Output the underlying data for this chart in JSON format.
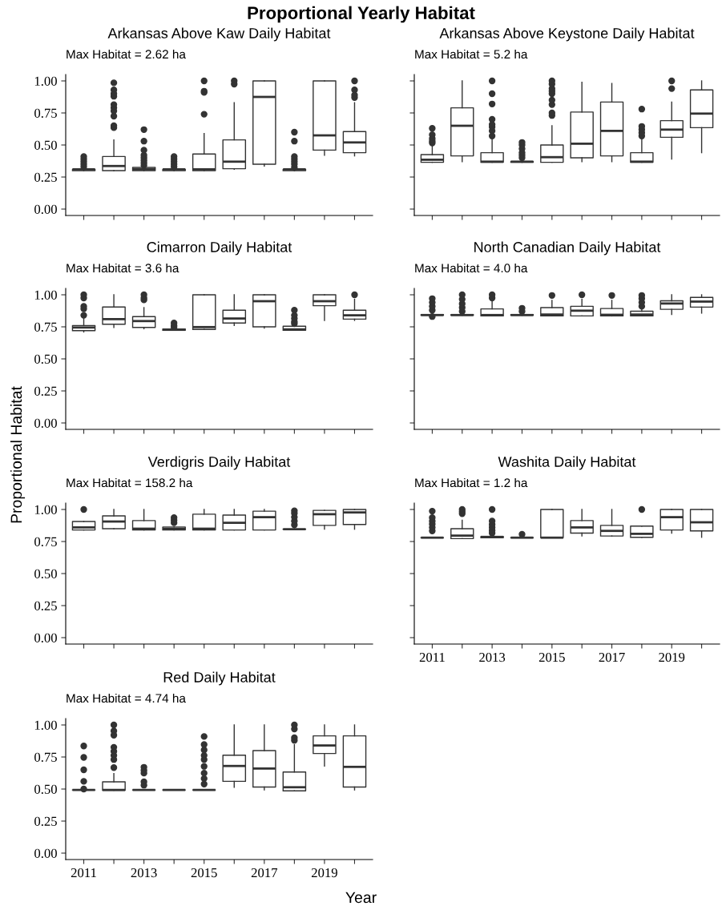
{
  "chart_data": [
    {
      "type": "other",
      "title": "Proportional Yearly Habitat",
      "xlabel": "Year",
      "ylabel": "Proportional Habitat"
    },
    {
      "type": "box",
      "title": "Arkansas Above Kaw Daily Habitat",
      "subtitle": "Max Habitat = 2.62 ha",
      "categories": [
        "2011",
        null,
        "2013",
        null,
        "2015",
        null,
        "2017",
        null,
        "2019",
        null
      ],
      "ylim": [
        -0.05,
        1.05
      ],
      "yticks": [
        {
          "value": 0,
          "label": "0.00"
        },
        {
          "value": 0.25,
          "label": "0.25"
        },
        {
          "value": 0.5,
          "label": "0.50"
        },
        {
          "value": 0.75,
          "label": "0.75"
        },
        {
          "value": 1,
          "label": "1.00"
        }
      ],
      "tick_labels": "y",
      "boxes": [
        {
          "low": 0.3,
          "q1": 0.3,
          "median": 0.31,
          "q3": 0.31,
          "high": 0.31,
          "outliers": [
            0.33,
            0.35,
            0.37,
            0.39,
            0.41
          ]
        },
        {
          "low": 0.3,
          "q1": 0.3,
          "median": 0.336,
          "q3": 0.41,
          "high": 0.54,
          "outliers": [
            0.635,
            0.65,
            0.725,
            0.765,
            0.79,
            0.815,
            0.88,
            0.9,
            0.93,
            0.985
          ]
        },
        {
          "low": 0.3,
          "q1": 0.3,
          "median": 0.31,
          "q3": 0.325,
          "high": 0.33,
          "outliers": [
            0.34,
            0.36,
            0.38,
            0.4,
            0.42,
            0.46,
            0.53,
            0.62
          ]
        },
        {
          "low": 0.3,
          "q1": 0.3,
          "median": 0.31,
          "q3": 0.31,
          "high": 0.31,
          "outliers": [
            0.33,
            0.35,
            0.37,
            0.39,
            0.41
          ]
        },
        {
          "low": 0.3,
          "q1": 0.3,
          "median": 0.31,
          "q3": 0.43,
          "high": 0.59,
          "outliers": [
            0.74,
            0.91,
            0.92,
            1.0
          ]
        },
        {
          "low": 0.31,
          "q1": 0.315,
          "median": 0.37,
          "q3": 0.54,
          "high": 0.83,
          "outliers": [
            0.975,
            1.0
          ]
        },
        {
          "low": 0.335,
          "q1": 0.35,
          "median": 0.875,
          "q3": 1.0,
          "high": 1.0
        },
        {
          "low": 0.3,
          "q1": 0.3,
          "median": 0.31,
          "q3": 0.31,
          "high": 0.31,
          "outliers": [
            0.325,
            0.35,
            0.37,
            0.39,
            0.41,
            0.53,
            0.6
          ]
        },
        {
          "low": 0.42,
          "q1": 0.46,
          "median": 0.575,
          "q3": 1.0,
          "high": 1.0
        },
        {
          "low": 0.415,
          "q1": 0.44,
          "median": 0.52,
          "q3": 0.605,
          "high": 0.83,
          "outliers": [
            0.87,
            0.89,
            0.93,
            1.0
          ]
        }
      ]
    },
    {
      "type": "box",
      "title": "Arkansas Above Keystone Daily Habitat",
      "subtitle": "Max Habitat = 5.2 ha",
      "categories": [
        "2011",
        null,
        "2013",
        null,
        "2015",
        null,
        "2017",
        null,
        "2019",
        null
      ],
      "ylim": [
        -0.05,
        1.05
      ],
      "yticks": [
        {
          "value": 0,
          "label": null
        },
        {
          "value": 0.25,
          "label": null
        },
        {
          "value": 0.5,
          "label": null
        },
        {
          "value": 0.75,
          "label": null
        },
        {
          "value": 1,
          "label": null
        }
      ],
      "tick_labels": false,
      "boxes": [
        {
          "low": 0.365,
          "q1": 0.365,
          "median": 0.385,
          "q3": 0.425,
          "high": 0.5,
          "outliers": [
            0.515,
            0.53,
            0.55,
            0.58,
            0.63
          ]
        },
        {
          "low": 0.37,
          "q1": 0.415,
          "median": 0.65,
          "q3": 0.79,
          "high": 1.0
        },
        {
          "low": 0.365,
          "q1": 0.365,
          "median": 0.37,
          "q3": 0.44,
          "high": 0.56,
          "outliers": [
            0.57,
            0.61,
            0.64,
            0.66,
            0.7,
            0.82,
            0.9,
            1.0
          ]
        },
        {
          "low": 0.365,
          "q1": 0.365,
          "median": 0.37,
          "q3": 0.37,
          "high": 0.37,
          "outliers": [
            0.4,
            0.42,
            0.44,
            0.47,
            0.5,
            0.52
          ]
        },
        {
          "low": 0.365,
          "q1": 0.365,
          "median": 0.405,
          "q3": 0.5,
          "high": 0.65,
          "outliers": [
            0.73,
            0.75,
            0.815,
            0.85,
            0.9,
            0.92,
            0.94,
            0.975,
            1.0
          ]
        },
        {
          "low": 0.37,
          "q1": 0.4,
          "median": 0.51,
          "q3": 0.757,
          "high": 0.99
        },
        {
          "low": 0.37,
          "q1": 0.415,
          "median": 0.61,
          "q3": 0.835,
          "high": 0.98
        },
        {
          "low": 0.365,
          "q1": 0.365,
          "median": 0.37,
          "q3": 0.44,
          "high": 0.56,
          "outliers": [
            0.57,
            0.595,
            0.62,
            0.645,
            0.78
          ]
        },
        {
          "low": 0.39,
          "q1": 0.56,
          "median": 0.62,
          "q3": 0.69,
          "high": 0.835,
          "outliers": [
            0.94,
            1.0
          ]
        },
        {
          "low": 0.44,
          "q1": 0.635,
          "median": 0.745,
          "q3": 0.93,
          "high": 1.0
        }
      ]
    },
    {
      "type": "box",
      "title": "Cimarron Daily Habitat",
      "subtitle": "Max Habitat = 3.6 ha",
      "categories": [
        "2011",
        null,
        "2013",
        null,
        "2015",
        null,
        "2017",
        null,
        "2019",
        null
      ],
      "ylim": [
        -0.05,
        1.05
      ],
      "yticks": [
        {
          "value": 0,
          "label": "0.00"
        },
        {
          "value": 0.25,
          "label": "0.25"
        },
        {
          "value": 0.5,
          "label": "0.50"
        },
        {
          "value": 0.75,
          "label": "0.75"
        },
        {
          "value": 1,
          "label": "1.00"
        }
      ],
      "tick_labels": "y",
      "boxes": [
        {
          "low": 0.71,
          "q1": 0.72,
          "median": 0.745,
          "q3": 0.76,
          "high": 0.815,
          "outliers": [
            0.84,
            0.89,
            0.91,
            0.975,
            1.0
          ]
        },
        {
          "low": 0.745,
          "q1": 0.77,
          "median": 0.81,
          "q3": 0.905,
          "high": 1.0
        },
        {
          "low": 0.735,
          "q1": 0.745,
          "median": 0.795,
          "q3": 0.83,
          "high": 0.9,
          "outliers": [
            0.96,
            0.975,
            1.0
          ]
        },
        {
          "low": 0.723,
          "q1": 0.723,
          "median": 0.727,
          "q3": 0.733,
          "high": 0.733,
          "outliers": [
            0.745,
            0.76,
            0.78
          ]
        },
        {
          "low": 0.73,
          "q1": 0.73,
          "median": 0.748,
          "q3": 1.0,
          "high": 1.0
        },
        {
          "low": 0.76,
          "q1": 0.78,
          "median": 0.815,
          "q3": 0.88,
          "high": 1.0
        },
        {
          "low": 0.74,
          "q1": 0.75,
          "median": 0.95,
          "q3": 1.0,
          "high": 1.0
        },
        {
          "low": 0.723,
          "q1": 0.723,
          "median": 0.73,
          "q3": 0.755,
          "high": 0.755,
          "outliers": [
            0.775,
            0.79,
            0.815,
            0.84,
            0.88
          ]
        },
        {
          "low": 0.8,
          "q1": 0.915,
          "median": 0.95,
          "q3": 1.0,
          "high": 1.0
        },
        {
          "low": 0.8,
          "q1": 0.81,
          "median": 0.84,
          "q3": 0.88,
          "high": 0.965,
          "outliers": [
            1.0
          ]
        }
      ]
    },
    {
      "type": "box",
      "title": "North Canadian Daily Habitat",
      "subtitle": "Max Habitat = 4.0 ha",
      "categories": [
        "2011",
        null,
        "2013",
        null,
        "2015",
        null,
        "2017",
        null,
        "2019",
        null
      ],
      "ylim": [
        -0.05,
        1.05
      ],
      "yticks": [
        {
          "value": 0,
          "label": null
        },
        {
          "value": 0.25,
          "label": null
        },
        {
          "value": 0.5,
          "label": null
        },
        {
          "value": 0.75,
          "label": null
        },
        {
          "value": 1,
          "label": null
        }
      ],
      "tick_labels": false,
      "boxes": [
        {
          "low": 0.84,
          "q1": 0.84,
          "median": 0.842,
          "q3": 0.845,
          "high": 0.845,
          "outliers": [
            0.83,
            0.88,
            0.91,
            0.94,
            0.97
          ]
        },
        {
          "low": 0.84,
          "q1": 0.84,
          "median": 0.842,
          "q3": 0.845,
          "high": 0.845,
          "outliers": [
            0.87,
            0.9,
            0.93,
            0.965,
            1.0
          ]
        },
        {
          "low": 0.835,
          "q1": 0.835,
          "median": 0.842,
          "q3": 0.89,
          "high": 0.96,
          "outliers": [
            0.975,
            1.0
          ]
        },
        {
          "low": 0.84,
          "q1": 0.84,
          "median": 0.842,
          "q3": 0.845,
          "high": 0.845,
          "outliers": [
            0.87,
            0.895
          ]
        },
        {
          "low": 0.835,
          "q1": 0.835,
          "median": 0.846,
          "q3": 0.9,
          "high": 0.957,
          "outliers": [
            0.995
          ]
        },
        {
          "low": 0.835,
          "q1": 0.835,
          "median": 0.876,
          "q3": 0.91,
          "high": 0.964,
          "outliers": [
            1.0
          ]
        },
        {
          "low": 0.835,
          "q1": 0.835,
          "median": 0.844,
          "q3": 0.893,
          "high": 0.957,
          "outliers": [
            0.995
          ]
        },
        {
          "low": 0.835,
          "q1": 0.835,
          "median": 0.846,
          "q3": 0.872,
          "high": 0.89,
          "outliers": [
            0.91,
            0.94,
            0.97,
            0.995
          ]
        },
        {
          "low": 0.846,
          "q1": 0.887,
          "median": 0.932,
          "q3": 0.953,
          "high": 1.0
        },
        {
          "low": 0.857,
          "q1": 0.904,
          "median": 0.947,
          "q3": 0.98,
          "high": 1.0
        }
      ]
    },
    {
      "type": "box",
      "title": "Verdigris Daily Habitat",
      "subtitle": "Max Habitat = 158.2 ha",
      "categories": [
        "2011",
        null,
        "2013",
        null,
        "2015",
        null,
        "2017",
        null,
        "2019",
        null
      ],
      "ylim": [
        -0.05,
        1.05
      ],
      "yticks": [
        {
          "value": 0,
          "label": "0.00"
        },
        {
          "value": 0.25,
          "label": "0.25"
        },
        {
          "value": 0.5,
          "label": "0.50"
        },
        {
          "value": 0.75,
          "label": "0.75"
        },
        {
          "value": 1,
          "label": "1.00"
        }
      ],
      "tick_labels": "y",
      "boxes": [
        {
          "low": 0.84,
          "q1": 0.84,
          "median": 0.86,
          "q3": 0.906,
          "high": 0.906,
          "outliers": [
            1.0
          ]
        },
        {
          "low": 0.85,
          "q1": 0.85,
          "median": 0.906,
          "q3": 0.95,
          "high": 1.0
        },
        {
          "low": 0.84,
          "q1": 0.84,
          "median": 0.85,
          "q3": 0.913,
          "high": 1.0
        },
        {
          "low": 0.84,
          "q1": 0.84,
          "median": 0.85,
          "q3": 0.863,
          "high": 0.863,
          "outliers": [
            0.896,
            0.916,
            0.936
          ]
        },
        {
          "low": 0.84,
          "q1": 0.84,
          "median": 0.85,
          "q3": 0.963,
          "high": 1.0
        },
        {
          "low": 0.84,
          "q1": 0.84,
          "median": 0.896,
          "q3": 0.956,
          "high": 1.0
        },
        {
          "low": 0.84,
          "q1": 0.84,
          "median": 0.94,
          "q3": 0.987,
          "high": 1.0
        },
        {
          "low": 0.846,
          "q1": 0.846,
          "median": 0.846,
          "q3": 0.846,
          "high": 0.85,
          "outliers": [
            0.88,
            0.91,
            0.94,
            0.97,
            0.99
          ]
        },
        {
          "low": 0.846,
          "q1": 0.876,
          "median": 0.963,
          "q3": 0.993,
          "high": 0.993
        },
        {
          "low": 0.846,
          "q1": 0.883,
          "median": 0.977,
          "q3": 1.0,
          "high": 1.0
        }
      ]
    },
    {
      "type": "box",
      "title": "Washita Daily Habitat",
      "subtitle": "Max Habitat = 1.2 ha",
      "categories": [
        "2011",
        null,
        "2013",
        null,
        "2015",
        null,
        "2017",
        null,
        "2019",
        null
      ],
      "ylim": [
        -0.05,
        1.05
      ],
      "yticks": [
        {
          "value": 0,
          "label": null
        },
        {
          "value": 0.25,
          "label": null
        },
        {
          "value": 0.5,
          "label": null
        },
        {
          "value": 0.75,
          "label": null
        },
        {
          "value": 1,
          "label": null
        }
      ],
      "tick_labels": "x",
      "boxes": [
        {
          "low": 0.78,
          "q1": 0.78,
          "median": 0.78,
          "q3": 0.78,
          "high": 0.78,
          "outliers": [
            0.833,
            0.86,
            0.886,
            0.91,
            0.936,
            0.987
          ]
        },
        {
          "low": 0.773,
          "q1": 0.773,
          "median": 0.796,
          "q3": 0.85,
          "high": 0.916,
          "outliers": [
            0.967,
            0.983,
            1.0
          ]
        },
        {
          "low": 0.78,
          "q1": 0.78,
          "median": 0.786,
          "q3": 0.79,
          "high": 0.8,
          "outliers": [
            0.816,
            0.836,
            0.86,
            0.883,
            0.91,
            1.0
          ]
        },
        {
          "low": 0.78,
          "q1": 0.78,
          "median": 0.78,
          "q3": 0.78,
          "high": 0.78,
          "outliers": [
            0.806
          ]
        },
        {
          "low": 0.78,
          "q1": 0.78,
          "median": 0.78,
          "q3": 1.0,
          "high": 1.0
        },
        {
          "low": 0.793,
          "q1": 0.816,
          "median": 0.86,
          "q3": 0.913,
          "high": 1.0
        },
        {
          "low": 0.793,
          "q1": 0.793,
          "median": 0.833,
          "q3": 0.876,
          "high": 1.0
        },
        {
          "low": 0.783,
          "q1": 0.783,
          "median": 0.81,
          "q3": 0.87,
          "high": 0.87,
          "outliers": [
            1.0
          ]
        },
        {
          "low": 0.816,
          "q1": 0.84,
          "median": 0.94,
          "q3": 1.0,
          "high": 1.0
        },
        {
          "low": 0.783,
          "q1": 0.833,
          "median": 0.9,
          "q3": 1.0,
          "high": 1.0
        }
      ]
    },
    {
      "type": "box",
      "title": "Red Daily Habitat",
      "subtitle": "Max Habitat = 4.74 ha",
      "categories": [
        "2011",
        null,
        "2013",
        null,
        "2015",
        null,
        "2017",
        null,
        "2019",
        null
      ],
      "ylim": [
        -0.05,
        1.05
      ],
      "yticks": [
        {
          "value": 0,
          "label": "0.00"
        },
        {
          "value": 0.25,
          "label": "0.25"
        },
        {
          "value": 0.5,
          "label": "0.50"
        },
        {
          "value": 0.75,
          "label": "0.75"
        },
        {
          "value": 1,
          "label": "1.00"
        }
      ],
      "boxes": [
        {
          "low": 0.493,
          "q1": 0.493,
          "median": 0.493,
          "q3": 0.493,
          "high": 0.493,
          "outliers": [
            0.5,
            0.56,
            0.65,
            0.747,
            0.836
          ]
        },
        {
          "low": 0.49,
          "q1": 0.49,
          "median": 0.493,
          "q3": 0.556,
          "high": 0.62,
          "outliers": [
            0.667,
            0.73,
            0.762,
            0.794,
            0.826,
            0.92,
            0.953,
            1.0
          ]
        },
        {
          "low": 0.493,
          "q1": 0.493,
          "median": 0.493,
          "q3": 0.493,
          "high": 0.493,
          "outliers": [
            0.53,
            0.556,
            0.624,
            0.645,
            0.67
          ]
        },
        {
          "low": 0.493,
          "q1": 0.493,
          "median": 0.493,
          "q3": 0.493,
          "high": 0.493
        },
        {
          "low": 0.493,
          "q1": 0.493,
          "median": 0.493,
          "q3": 0.493,
          "high": 0.493,
          "outliers": [
            0.539,
            0.582,
            0.624,
            0.677,
            0.73,
            0.762,
            0.805,
            0.847,
            0.91
          ]
        },
        {
          "low": 0.514,
          "q1": 0.56,
          "median": 0.68,
          "q3": 0.764,
          "high": 1.0
        },
        {
          "low": 0.493,
          "q1": 0.516,
          "median": 0.66,
          "q3": 0.8,
          "high": 1.0
        },
        {
          "low": 0.486,
          "q1": 0.486,
          "median": 0.514,
          "q3": 0.633,
          "high": 0.847,
          "outliers": [
            0.88,
            0.9,
            0.968,
            1.0
          ]
        },
        {
          "low": 0.68,
          "q1": 0.777,
          "median": 0.84,
          "q3": 0.915,
          "high": 1.0
        },
        {
          "low": 0.493,
          "q1": 0.516,
          "median": 0.673,
          "q3": 0.915,
          "high": 1.0
        }
      ]
    }
  ]
}
